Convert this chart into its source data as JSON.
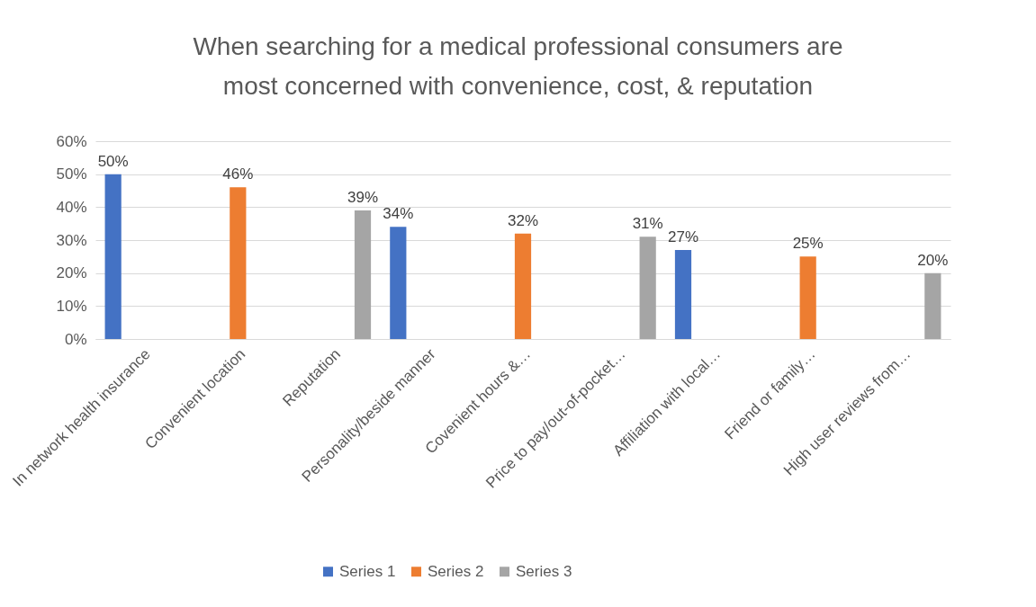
{
  "chart_data": {
    "type": "bar",
    "title": "When searching for a medical professional consumers are most concerned with convenience, cost, & reputation",
    "categories": [
      "In network health insurance",
      "Convenient location",
      "Reputation",
      "Personality/beside manner",
      "Covenient hours &…",
      "Price to pay/out-of-pocket…",
      "Affiliation with local…",
      "Friend or family…",
      "High user reviews from…"
    ],
    "series": [
      {
        "name": "Series 1",
        "color": "#4472c4",
        "values": [
          50,
          null,
          null,
          34,
          null,
          null,
          27,
          null,
          null
        ],
        "value_labels": [
          "50%",
          null,
          null,
          "34%",
          null,
          null,
          "27%",
          null,
          null
        ]
      },
      {
        "name": "Series 2",
        "color": "#ed7d31",
        "values": [
          null,
          46,
          null,
          null,
          32,
          null,
          null,
          25,
          null
        ],
        "value_labels": [
          null,
          "46%",
          null,
          null,
          "32%",
          null,
          null,
          "25%",
          null
        ]
      },
      {
        "name": "Series 3",
        "color": "#a5a5a5",
        "values": [
          null,
          null,
          39,
          null,
          null,
          31,
          null,
          null,
          20
        ],
        "value_labels": [
          null,
          null,
          "39%",
          null,
          null,
          "31%",
          null,
          null,
          "20%"
        ]
      }
    ],
    "ylim": [
      0,
      60
    ],
    "yticks": [
      {
        "value": 0,
        "label": "0%"
      },
      {
        "value": 10,
        "label": "10%"
      },
      {
        "value": 20,
        "label": "20%"
      },
      {
        "value": 30,
        "label": "30%"
      },
      {
        "value": 40,
        "label": "40%"
      },
      {
        "value": 50,
        "label": "50%"
      },
      {
        "value": 60,
        "label": "60%"
      }
    ],
    "grid": "y",
    "legend": "bottom"
  }
}
